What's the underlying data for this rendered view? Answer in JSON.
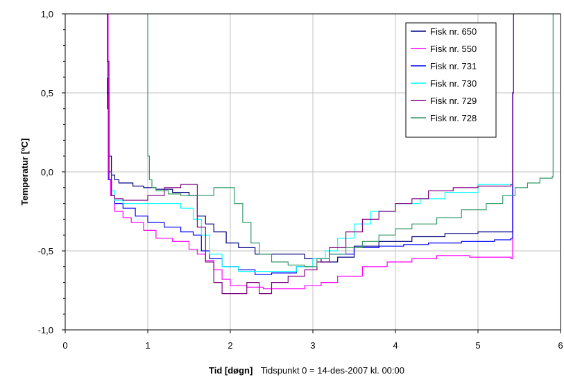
{
  "chart_data": {
    "type": "line",
    "title": "",
    "ylabel": "Temperatur  [ºC]",
    "xlabel_bold": "Tid  [døgn]",
    "xlabel_note": "Tidspunkt 0 = 14-des-2007 kl. 00:00",
    "xlim": [
      0,
      6
    ],
    "ylim": [
      -1.0,
      1.0
    ],
    "x_ticks": [
      0,
      1,
      2,
      3,
      4,
      5,
      6
    ],
    "x_tick_labels": [
      "0",
      "1",
      "2",
      "3",
      "4",
      "5",
      "6"
    ],
    "y_ticks": [
      -1.0,
      -0.5,
      0.0,
      0.5,
      1.0
    ],
    "y_tick_labels": [
      "-1,0",
      "-0,5",
      "0,0",
      "0,5",
      "1,0"
    ],
    "grid": true,
    "legend_position": "top-right",
    "series": [
      {
        "name": "Fisk nr. 650",
        "color": "#000080",
        "x": [
          0.5,
          0.51,
          0.53,
          0.56,
          0.6,
          0.65,
          0.72,
          0.82,
          0.95,
          1.1,
          1.3,
          1.5,
          1.6,
          1.7,
          1.8,
          1.95,
          2.1,
          2.3,
          2.6,
          2.9,
          3.1,
          3.3,
          3.5,
          3.8,
          4.2,
          4.6,
          5.0,
          5.4,
          5.42,
          5.43
        ],
        "y": [
          1.0,
          0.4,
          0.1,
          -0.02,
          -0.05,
          -0.07,
          -0.07,
          -0.09,
          -0.1,
          -0.11,
          -0.13,
          -0.15,
          -0.28,
          -0.33,
          -0.38,
          -0.45,
          -0.48,
          -0.52,
          -0.52,
          -0.55,
          -0.57,
          -0.54,
          -0.47,
          -0.44,
          -0.41,
          -0.39,
          -0.38,
          -0.38,
          0.5,
          1.0
        ]
      },
      {
        "name": "Fisk nr. 550",
        "color": "#FF00FF",
        "x": [
          0.5,
          0.52,
          0.55,
          0.6,
          0.7,
          0.8,
          0.95,
          1.1,
          1.3,
          1.5,
          1.6,
          1.7,
          1.8,
          1.9,
          2.0,
          2.2,
          2.4,
          2.7,
          2.9,
          3.1,
          3.3,
          3.6,
          3.9,
          4.2,
          4.5,
          4.9,
          5.4,
          5.42,
          5.43
        ],
        "y": [
          1.0,
          -0.05,
          -0.15,
          -0.25,
          -0.29,
          -0.32,
          -0.37,
          -0.42,
          -0.44,
          -0.49,
          -0.52,
          -0.56,
          -0.62,
          -0.68,
          -0.72,
          -0.73,
          -0.74,
          -0.74,
          -0.72,
          -0.7,
          -0.66,
          -0.6,
          -0.57,
          -0.55,
          -0.53,
          -0.54,
          -0.55,
          0.5,
          1.0
        ]
      },
      {
        "name": "Fisk nr. 731",
        "color": "#0000FF",
        "x": [
          0.5,
          0.51,
          0.53,
          0.56,
          0.6,
          0.7,
          0.85,
          1.0,
          1.2,
          1.4,
          1.55,
          1.65,
          1.75,
          1.9,
          2.1,
          2.3,
          2.5,
          2.8,
          3.0,
          3.2,
          3.5,
          3.8,
          4.1,
          4.4,
          4.8,
          5.2,
          5.4,
          5.42,
          5.43
        ],
        "y": [
          1.0,
          0.5,
          -0.05,
          -0.15,
          -0.2,
          -0.23,
          -0.28,
          -0.32,
          -0.35,
          -0.38,
          -0.4,
          -0.5,
          -0.55,
          -0.6,
          -0.62,
          -0.65,
          -0.64,
          -0.6,
          -0.55,
          -0.52,
          -0.48,
          -0.47,
          -0.46,
          -0.45,
          -0.44,
          -0.43,
          -0.42,
          0.5,
          1.0
        ]
      },
      {
        "name": "Fisk nr. 730",
        "color": "#00FFFF",
        "x": [
          0.5,
          0.51,
          0.53,
          0.56,
          0.6,
          0.7,
          0.85,
          1.0,
          1.2,
          1.4,
          1.55,
          1.65,
          1.75,
          1.9,
          2.1,
          2.3,
          2.6,
          2.8,
          3.0,
          3.15,
          3.3,
          3.5,
          3.7,
          4.0,
          4.3,
          4.6,
          5.0,
          5.4,
          5.42,
          5.43
        ],
        "y": [
          1.0,
          0.6,
          0.0,
          -0.12,
          -0.18,
          -0.2,
          -0.2,
          -0.2,
          -0.2,
          -0.23,
          -0.3,
          -0.4,
          -0.52,
          -0.6,
          -0.63,
          -0.63,
          -0.63,
          -0.6,
          -0.55,
          -0.5,
          -0.42,
          -0.33,
          -0.25,
          -0.2,
          -0.17,
          -0.13,
          -0.08,
          -0.08,
          0.5,
          1.0
        ]
      },
      {
        "name": "Fisk nr. 729",
        "color": "#800080",
        "x": [
          0.5,
          0.51,
          0.53,
          0.56,
          0.6,
          0.7,
          0.85,
          1.0,
          1.2,
          1.4,
          1.55,
          1.6,
          1.7,
          1.8,
          1.9,
          2.0,
          2.2,
          2.35,
          2.5,
          2.7,
          2.9,
          3.05,
          3.2,
          3.4,
          3.6,
          3.8,
          4.0,
          4.2,
          4.4,
          4.7,
          5.0,
          5.4,
          5.42,
          5.43
        ],
        "y": [
          1.0,
          0.7,
          0.0,
          -0.15,
          -0.17,
          -0.18,
          -0.18,
          -0.15,
          -0.1,
          -0.08,
          -0.08,
          -0.35,
          -0.57,
          -0.7,
          -0.77,
          -0.77,
          -0.7,
          -0.77,
          -0.7,
          -0.66,
          -0.62,
          -0.57,
          -0.48,
          -0.38,
          -0.3,
          -0.25,
          -0.2,
          -0.17,
          -0.12,
          -0.1,
          -0.09,
          -0.08,
          0.5,
          1.0
        ]
      },
      {
        "name": "Fisk nr. 728",
        "color": "#339966",
        "x": [
          1.0,
          1.0,
          1.02,
          1.05,
          1.1,
          1.25,
          1.4,
          1.6,
          1.8,
          1.95,
          2.05,
          2.15,
          2.25,
          2.35,
          2.5,
          2.7,
          2.9,
          3.05,
          3.2,
          3.4,
          3.6,
          3.8,
          4.0,
          4.2,
          4.5,
          4.8,
          5.1,
          5.3,
          5.45,
          5.6,
          5.75,
          5.9,
          5.91
        ],
        "y": [
          1.0,
          0.1,
          -0.05,
          -0.1,
          -0.12,
          -0.14,
          -0.15,
          -0.15,
          -0.1,
          -0.1,
          -0.2,
          -0.32,
          -0.45,
          -0.52,
          -0.57,
          -0.59,
          -0.6,
          -0.55,
          -0.52,
          -0.48,
          -0.44,
          -0.4,
          -0.36,
          -0.33,
          -0.29,
          -0.24,
          -0.2,
          -0.15,
          -0.1,
          -0.07,
          -0.04,
          -0.03,
          1.0
        ]
      }
    ]
  }
}
